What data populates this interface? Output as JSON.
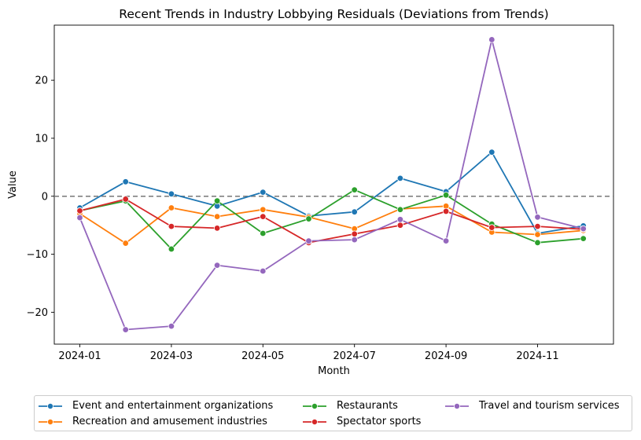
{
  "chart_data": {
    "type": "line",
    "title": "Recent Trends in Industry Lobbying Residuals (Deviations from Trends)",
    "xlabel": "Month",
    "ylabel": "Value",
    "x": [
      "2024-01",
      "2024-02",
      "2024-03",
      "2024-04",
      "2024-05",
      "2024-06",
      "2024-07",
      "2024-08",
      "2024-09",
      "2024-10",
      "2024-11",
      "2024-12"
    ],
    "x_tick_labels": [
      "2024-01",
      "2024-03",
      "2024-05",
      "2024-07",
      "2024-09",
      "2024-11"
    ],
    "y_ticks": [
      -20,
      -10,
      0,
      10,
      20
    ],
    "y_tick_labels": [
      "−20",
      "−10",
      "0",
      "10",
      "20"
    ],
    "ylim": [
      -25.5,
      29.5
    ],
    "reference_line": 0,
    "grid": false,
    "legend_placement": "bottom-center",
    "series": [
      {
        "name": "Event and entertainment organizations",
        "color": "#1f77b4",
        "values": [
          -2.0,
          2.5,
          0.4,
          -1.7,
          0.7,
          -3.4,
          -2.7,
          3.1,
          0.8,
          7.6,
          -6.4,
          -5.1
        ]
      },
      {
        "name": "Recreation and amusement industries",
        "color": "#ff7f0e",
        "values": [
          -3.0,
          -8.1,
          -2.0,
          -3.5,
          -2.3,
          -3.6,
          -5.6,
          -2.2,
          -1.7,
          -6.2,
          -6.6,
          -5.9
        ]
      },
      {
        "name": "Restaurants",
        "color": "#2ca02c",
        "values": [
          -2.5,
          -0.8,
          -9.1,
          -0.8,
          -6.4,
          -3.9,
          1.1,
          -2.3,
          0.2,
          -4.8,
          -8.0,
          -7.3
        ]
      },
      {
        "name": "Spectator sports",
        "color": "#d62728",
        "values": [
          -2.5,
          -0.5,
          -5.2,
          -5.5,
          -3.5,
          -8.0,
          -6.5,
          -5.0,
          -2.6,
          -5.4,
          -5.2,
          -5.7
        ]
      },
      {
        "name": "Travel and tourism services",
        "color": "#9467bd",
        "values": [
          -3.7,
          -23.0,
          -22.4,
          -11.9,
          -12.9,
          -7.7,
          -7.5,
          -4.0,
          -7.7,
          27.0,
          -3.6,
          -5.6
        ]
      }
    ]
  }
}
